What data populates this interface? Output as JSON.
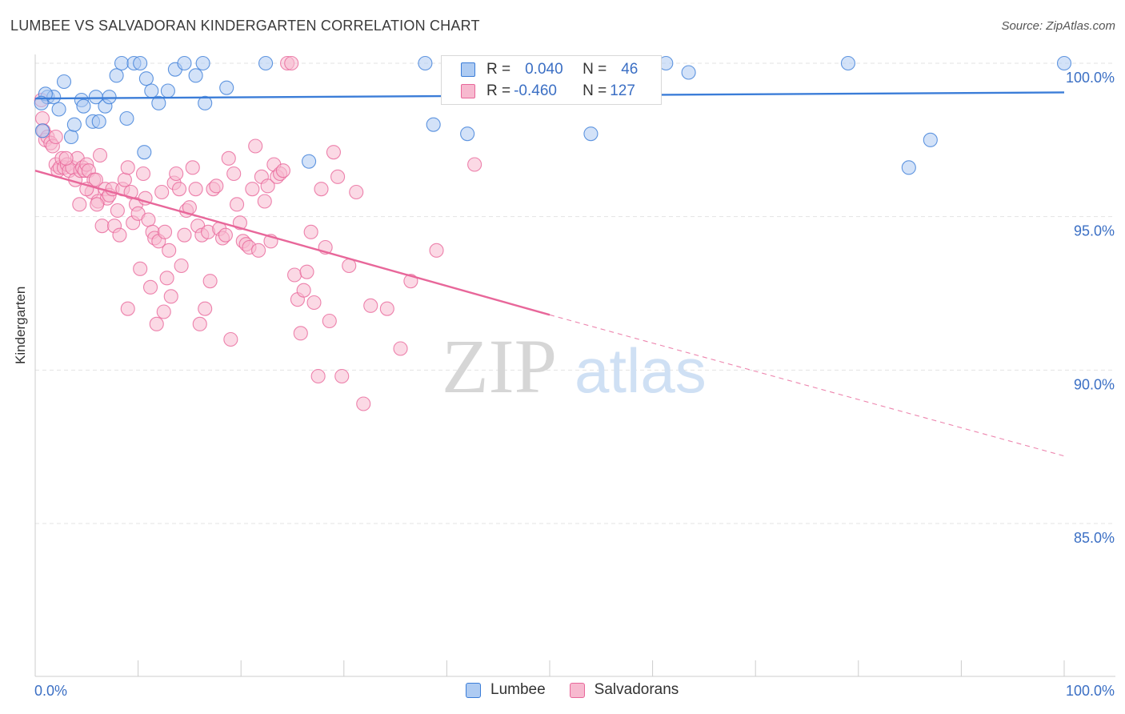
{
  "title": "LUMBEE VS SALVADORAN KINDERGARTEN CORRELATION CHART",
  "source": "Source: ZipAtlas.com",
  "watermark": {
    "zip": "ZIP",
    "atlas": "atlas"
  },
  "colors": {
    "blue": "#3b7dd8",
    "blue_fill": "#aecbf2",
    "pink": "#e8679a",
    "pink_fill": "#f7b9cf",
    "tick_label": "#3b6fc4",
    "grid": "#e3e3e3"
  },
  "legend": {
    "rows": [
      {
        "r_label": "R =",
        "r_value": "0.040",
        "n_label": "N =",
        "n_value": "46",
        "series": "Lumbee"
      },
      {
        "r_label": "R =",
        "r_value": "-0.460",
        "n_label": "N =",
        "n_value": "127",
        "series": "Salvadorans"
      }
    ]
  },
  "bottom_legend": [
    "Lumbee",
    "Salvadorans"
  ],
  "chart_data": {
    "type": "scatter",
    "title": "LUMBEE VS SALVADORAN KINDERGARTEN CORRELATION CHART",
    "xlabel": "",
    "ylabel": "Kindergarten",
    "xlim": [
      0,
      100
    ],
    "ylim": [
      80.5,
      100.8
    ],
    "x_tick_labels": [
      "0.0%",
      "100.0%"
    ],
    "y_ticks": [
      85,
      90,
      95,
      100
    ],
    "y_tick_labels": [
      "85.0%",
      "90.0%",
      "95.0%",
      "100.0%"
    ],
    "series": [
      {
        "name": "Lumbee",
        "color": "#3b7dd8",
        "trend": {
          "x0": 0,
          "y0": 98.85,
          "x1": 100,
          "y1": 99.05
        },
        "points": [
          [
            1.2,
            98.9
          ],
          [
            1.8,
            98.9
          ],
          [
            2.3,
            98.5
          ],
          [
            2.8,
            99.4
          ],
          [
            3.5,
            97.6
          ],
          [
            3.8,
            98.0
          ],
          [
            4.5,
            98.8
          ],
          [
            4.7,
            98.6
          ],
          [
            5.6,
            98.1
          ],
          [
            5.9,
            98.9
          ],
          [
            6.2,
            98.1
          ],
          [
            6.8,
            98.6
          ],
          [
            7.2,
            98.9
          ],
          [
            7.9,
            99.6
          ],
          [
            8.4,
            100.0
          ],
          [
            8.9,
            98.2
          ],
          [
            9.6,
            100.0
          ],
          [
            10.2,
            100.0
          ],
          [
            10.6,
            97.1
          ],
          [
            10.8,
            99.5
          ],
          [
            11.3,
            99.1
          ],
          [
            12.0,
            98.7
          ],
          [
            12.9,
            99.1
          ],
          [
            13.6,
            99.8
          ],
          [
            14.5,
            100.0
          ],
          [
            15.6,
            99.6
          ],
          [
            16.3,
            100.0
          ],
          [
            16.5,
            98.7
          ],
          [
            18.6,
            99.2
          ],
          [
            22.4,
            100.0
          ],
          [
            26.6,
            96.8
          ],
          [
            37.9,
            100.0
          ],
          [
            38.7,
            98.0
          ],
          [
            42.0,
            97.7
          ],
          [
            45.5,
            99.8
          ],
          [
            48.0,
            99.0
          ],
          [
            54.0,
            97.7
          ],
          [
            61.3,
            100.0
          ],
          [
            63.5,
            99.7
          ],
          [
            79.0,
            100.0
          ],
          [
            84.9,
            96.6
          ],
          [
            87.0,
            97.5
          ],
          [
            100.0,
            100.0
          ],
          [
            1.0,
            99.0
          ],
          [
            0.7,
            97.8
          ],
          [
            0.6,
            98.7
          ]
        ]
      },
      {
        "name": "Salvadorans",
        "color": "#e8679a",
        "trend": {
          "x0": 0,
          "y0": 96.5,
          "x1": 50,
          "y1": 91.8
        },
        "trend_dashed": {
          "x0": 50,
          "y0": 91.8,
          "x1": 100,
          "y1": 87.2
        },
        "points": [
          [
            0.6,
            98.8
          ],
          [
            0.7,
            98.2
          ],
          [
            0.8,
            97.8
          ],
          [
            1.0,
            97.5
          ],
          [
            1.2,
            97.6
          ],
          [
            1.5,
            97.4
          ],
          [
            1.7,
            97.3
          ],
          [
            2.0,
            96.7
          ],
          [
            2.2,
            96.5
          ],
          [
            2.4,
            96.6
          ],
          [
            2.6,
            96.9
          ],
          [
            2.8,
            96.6
          ],
          [
            3.1,
            96.7
          ],
          [
            3.3,
            96.5
          ],
          [
            3.6,
            96.6
          ],
          [
            3.9,
            96.2
          ],
          [
            4.1,
            96.9
          ],
          [
            4.3,
            95.4
          ],
          [
            4.4,
            96.5
          ],
          [
            4.6,
            96.6
          ],
          [
            4.8,
            96.5
          ],
          [
            5.0,
            96.7
          ],
          [
            5.2,
            96.5
          ],
          [
            5.5,
            95.8
          ],
          [
            5.7,
            96.2
          ],
          [
            5.9,
            96.2
          ],
          [
            6.1,
            95.5
          ],
          [
            6.3,
            97.0
          ],
          [
            6.5,
            94.7
          ],
          [
            6.8,
            95.9
          ],
          [
            7.0,
            95.6
          ],
          [
            7.2,
            95.7
          ],
          [
            7.5,
            95.9
          ],
          [
            7.7,
            94.7
          ],
          [
            8.0,
            95.2
          ],
          [
            8.2,
            94.4
          ],
          [
            8.5,
            95.9
          ],
          [
            8.7,
            96.2
          ],
          [
            9.0,
            96.6
          ],
          [
            9.3,
            95.8
          ],
          [
            9.5,
            94.8
          ],
          [
            9.8,
            95.4
          ],
          [
            10.0,
            95.1
          ],
          [
            10.2,
            93.3
          ],
          [
            10.5,
            96.4
          ],
          [
            10.7,
            95.6
          ],
          [
            11.0,
            94.9
          ],
          [
            11.2,
            92.7
          ],
          [
            11.4,
            94.5
          ],
          [
            11.6,
            94.3
          ],
          [
            11.8,
            91.5
          ],
          [
            12.0,
            94.2
          ],
          [
            12.3,
            95.8
          ],
          [
            12.6,
            94.5
          ],
          [
            12.8,
            93.0
          ],
          [
            13.0,
            93.9
          ],
          [
            13.2,
            92.4
          ],
          [
            13.5,
            96.1
          ],
          [
            13.7,
            96.4
          ],
          [
            14.0,
            95.9
          ],
          [
            14.2,
            93.4
          ],
          [
            14.5,
            94.4
          ],
          [
            14.7,
            95.2
          ],
          [
            15.0,
            95.3
          ],
          [
            15.3,
            96.6
          ],
          [
            15.6,
            95.9
          ],
          [
            15.8,
            94.7
          ],
          [
            16.0,
            91.5
          ],
          [
            16.2,
            94.4
          ],
          [
            16.5,
            92.0
          ],
          [
            16.8,
            94.5
          ],
          [
            17.0,
            92.9
          ],
          [
            17.3,
            95.9
          ],
          [
            17.6,
            96.0
          ],
          [
            17.9,
            94.6
          ],
          [
            18.2,
            94.3
          ],
          [
            18.5,
            94.4
          ],
          [
            18.8,
            96.9
          ],
          [
            19.0,
            91.0
          ],
          [
            19.3,
            96.4
          ],
          [
            19.6,
            95.4
          ],
          [
            19.9,
            94.8
          ],
          [
            20.2,
            94.2
          ],
          [
            20.5,
            94.1
          ],
          [
            20.8,
            94.0
          ],
          [
            21.1,
            95.9
          ],
          [
            21.4,
            97.3
          ],
          [
            21.7,
            93.9
          ],
          [
            22.0,
            96.3
          ],
          [
            22.3,
            95.5
          ],
          [
            22.6,
            96.0
          ],
          [
            22.9,
            94.2
          ],
          [
            23.2,
            96.7
          ],
          [
            23.5,
            96.3
          ],
          [
            23.8,
            96.4
          ],
          [
            24.1,
            96.5
          ],
          [
            24.5,
            100.0
          ],
          [
            24.9,
            100.0
          ],
          [
            25.2,
            93.1
          ],
          [
            25.5,
            92.3
          ],
          [
            25.8,
            91.2
          ],
          [
            26.1,
            92.6
          ],
          [
            26.4,
            93.2
          ],
          [
            26.8,
            94.5
          ],
          [
            27.1,
            92.2
          ],
          [
            27.5,
            89.8
          ],
          [
            27.8,
            95.9
          ],
          [
            28.2,
            94.0
          ],
          [
            28.6,
            91.6
          ],
          [
            29.0,
            97.1
          ],
          [
            29.4,
            96.3
          ],
          [
            29.8,
            89.8
          ],
          [
            30.5,
            93.4
          ],
          [
            31.2,
            95.8
          ],
          [
            31.9,
            88.9
          ],
          [
            32.6,
            92.1
          ],
          [
            34.2,
            92.0
          ],
          [
            35.5,
            90.7
          ],
          [
            36.5,
            92.9
          ],
          [
            39.0,
            93.9
          ],
          [
            42.7,
            96.7
          ],
          [
            12.5,
            91.9
          ],
          [
            9.0,
            92.0
          ],
          [
            6.0,
            95.4
          ],
          [
            5.0,
            95.9
          ],
          [
            3.0,
            96.9
          ],
          [
            2.0,
            97.6
          ]
        ]
      }
    ]
  }
}
